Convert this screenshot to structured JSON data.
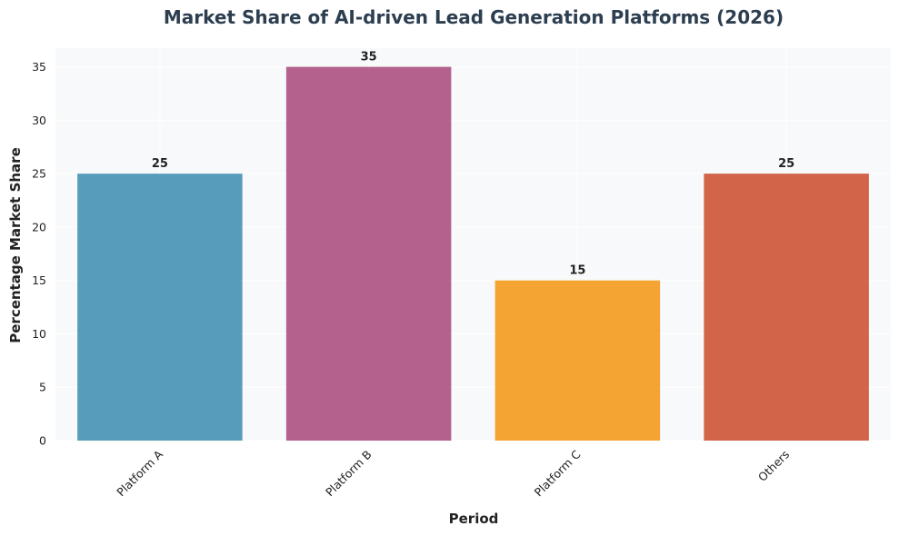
{
  "chart_data": {
    "type": "bar",
    "title": "Market Share of AI-driven Lead Generation Platforms (2026)",
    "xlabel": "Period",
    "ylabel": "Percentage Market Share",
    "categories": [
      "Platform A",
      "Platform B",
      "Platform C",
      "Others"
    ],
    "values": [
      25,
      35,
      15,
      25
    ],
    "data_labels": [
      "25",
      "35",
      "15",
      "25"
    ],
    "colors": [
      "#2e86ab",
      "#a23b72",
      "#f18f01",
      "#c73e1d"
    ],
    "ylim": [
      0,
      36.75
    ],
    "yticks": [
      0,
      5,
      10,
      15,
      20,
      25,
      30,
      35
    ],
    "ytick_labels": [
      "0",
      "5",
      "10",
      "15",
      "20",
      "25",
      "30",
      "35"
    ],
    "grid": true,
    "plot_background": "#f8f9fa",
    "title_color": "#2c3e50"
  }
}
